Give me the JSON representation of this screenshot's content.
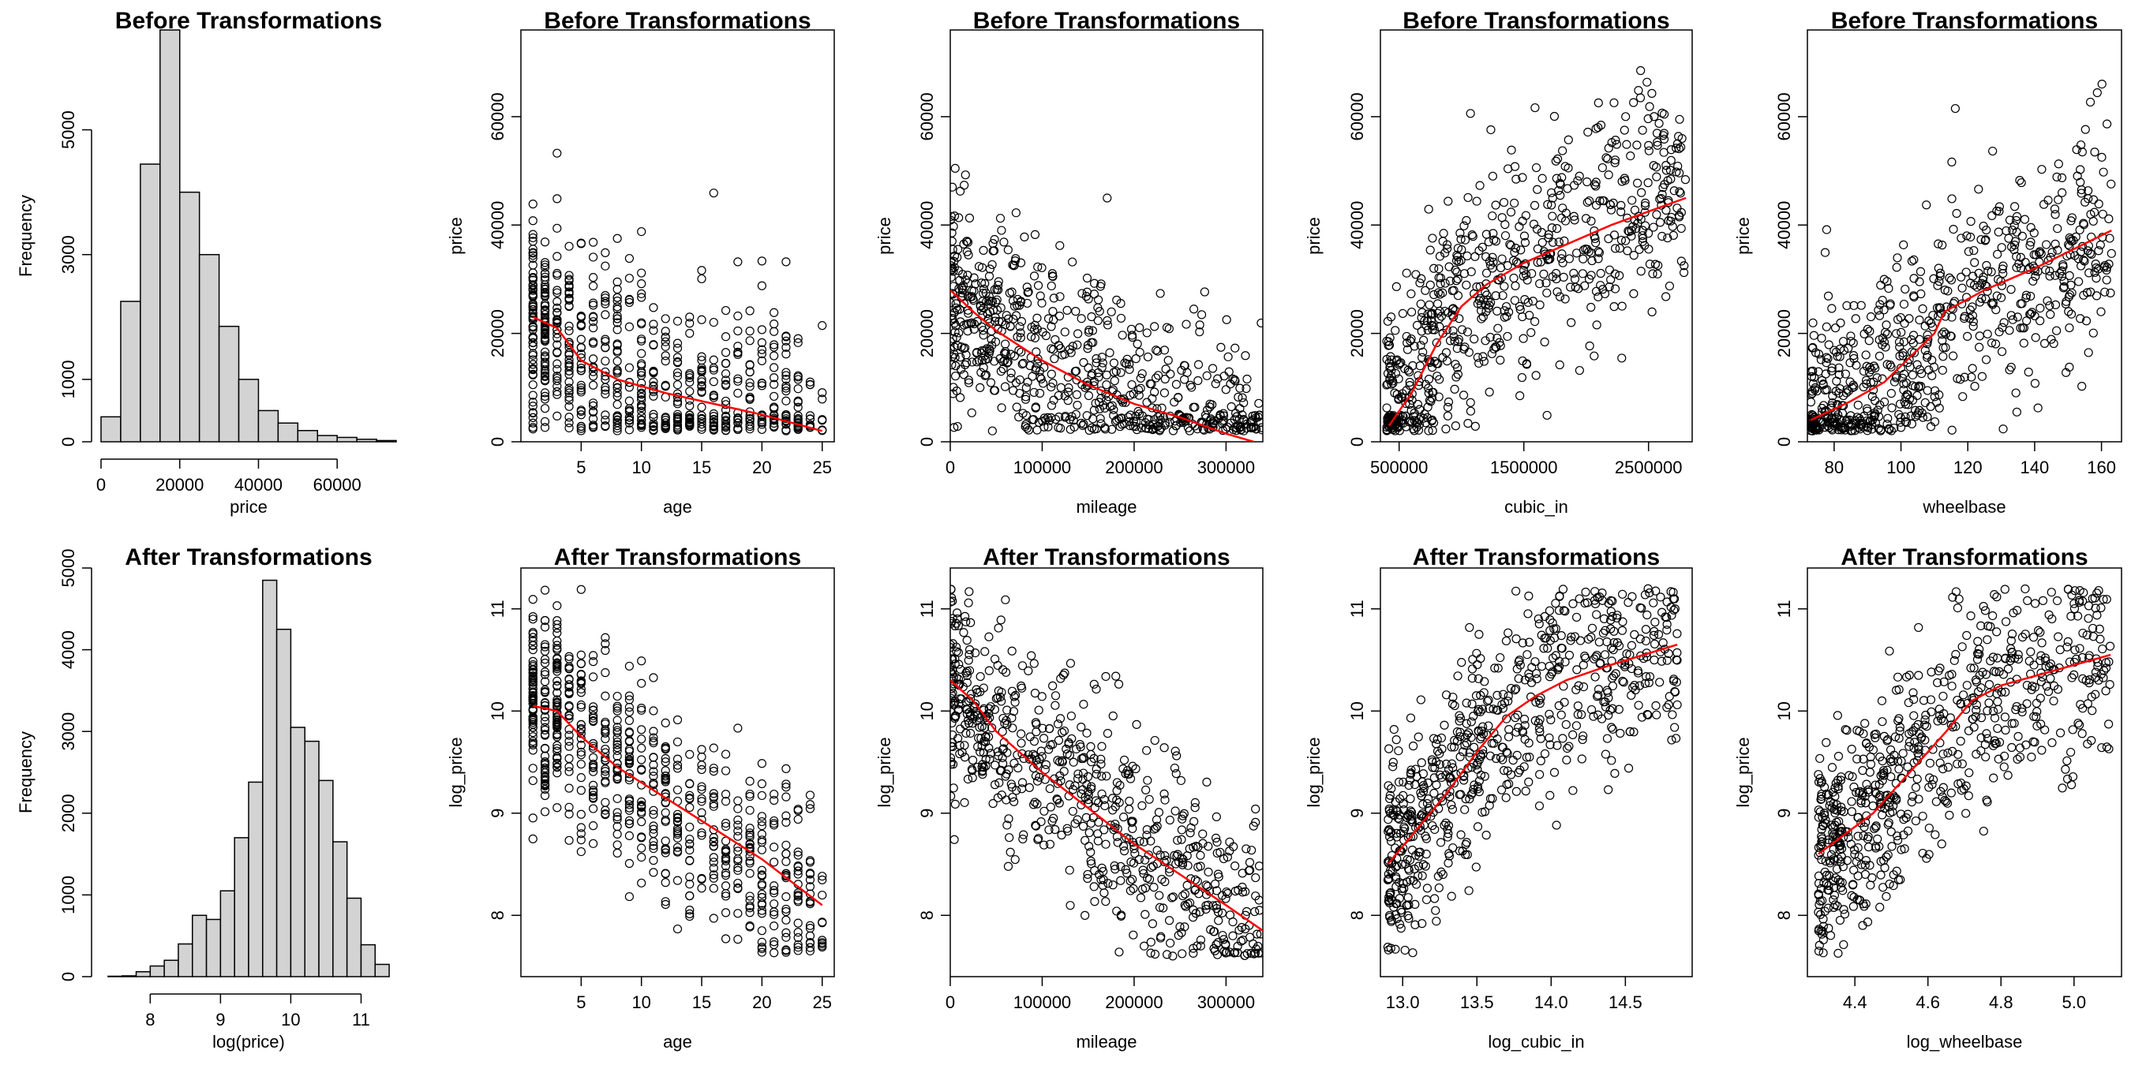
{
  "colors": {
    "background": "#ffffff",
    "bar_fill": "#d3d3d3",
    "stroke": "#000000",
    "smooth": "#ff0000"
  },
  "chart_data": [
    {
      "type": "bar",
      "title": "Before Transformations",
      "xlabel": "price",
      "ylabel": "Frequency",
      "bin_edges": [
        0,
        5000,
        10000,
        15000,
        20000,
        25000,
        30000,
        35000,
        40000,
        45000,
        50000,
        55000,
        60000,
        65000,
        70000,
        75000
      ],
      "values": [
        400,
        2250,
        4450,
        6600,
        4000,
        3000,
        1850,
        1000,
        500,
        300,
        180,
        100,
        70,
        40,
        20
      ],
      "xlim": [
        0,
        75000
      ],
      "ylim": [
        0,
        6600
      ],
      "xticks": [
        0,
        20000,
        40000,
        60000
      ],
      "xtick_labels": [
        "0",
        "20000",
        "40000",
        "60000"
      ],
      "yticks": [
        0,
        1000,
        3000,
        5000
      ],
      "ytick_labels": [
        "0",
        "1000",
        "3000",
        "5000"
      ]
    },
    {
      "type": "scatter",
      "title": "Before Transformations",
      "xlabel": "age",
      "ylabel": "price",
      "x_range": [
        1,
        25
      ],
      "y_range": [
        2000,
        75000
      ],
      "xlim": [
        0,
        26
      ],
      "ylim": [
        0,
        76000
      ],
      "xticks": [
        5,
        10,
        15,
        20,
        25
      ],
      "xtick_labels": [
        "5",
        "10",
        "15",
        "20",
        "25"
      ],
      "yticks": [
        0,
        20000,
        40000,
        60000
      ],
      "ytick_labels": [
        "0",
        "20000",
        "40000",
        "60000"
      ],
      "smooth_line": {
        "x": [
          1,
          3,
          5,
          8,
          12,
          16,
          20,
          25
        ],
        "y": [
          23000,
          21000,
          15000,
          11500,
          9000,
          7000,
          5000,
          2000
        ]
      }
    },
    {
      "type": "scatter",
      "title": "Before Transformations",
      "xlabel": "mileage",
      "ylabel": "price",
      "x_range": [
        0,
        340000
      ],
      "y_range": [
        2000,
        75000
      ],
      "xlim": [
        0,
        340000
      ],
      "ylim": [
        0,
        76000
      ],
      "xticks": [
        0,
        100000,
        200000,
        300000
      ],
      "xtick_labels": [
        "0",
        "100000",
        "200000",
        "300000"
      ],
      "yticks": [
        0,
        20000,
        40000,
        60000
      ],
      "ytick_labels": [
        "0",
        "20000",
        "40000",
        "60000"
      ],
      "smooth_line": {
        "x": [
          0,
          25000,
          50000,
          100000,
          150000,
          200000,
          250000,
          300000,
          330000
        ],
        "y": [
          28000,
          24000,
          20500,
          15000,
          10500,
          7000,
          4500,
          1500,
          0
        ]
      }
    },
    {
      "type": "scatter",
      "title": "Before Transformations",
      "xlabel": "cubic_in",
      "ylabel": "price",
      "x_range": [
        400000,
        2800000
      ],
      "y_range": [
        2000,
        75000
      ],
      "xlim": [
        350000,
        2850000
      ],
      "ylim": [
        0,
        76000
      ],
      "xticks": [
        500000,
        1500000,
        2500000
      ],
      "xtick_labels": [
        "500000",
        "1500000",
        "2500000"
      ],
      "yticks": [
        0,
        20000,
        40000,
        60000
      ],
      "ytick_labels": [
        "0",
        "20000",
        "40000",
        "60000"
      ],
      "smooth_line": {
        "x": [
          420000,
          600000,
          800000,
          1000000,
          1200000,
          1500000,
          1800000,
          2200000,
          2800000
        ],
        "y": [
          3000,
          9000,
          18000,
          25000,
          29000,
          33000,
          36000,
          40000,
          45000
        ]
      }
    },
    {
      "type": "scatter",
      "title": "Before Transformations",
      "xlabel": "wheelbase",
      "ylabel": "price",
      "x_range": [
        73,
        163
      ],
      "y_range": [
        2000,
        75000
      ],
      "xlim": [
        72,
        166
      ],
      "ylim": [
        0,
        76000
      ],
      "xticks": [
        80,
        100,
        120,
        140,
        160
      ],
      "xtick_labels": [
        "80",
        "100",
        "120",
        "140",
        "160"
      ],
      "yticks": [
        0,
        20000,
        40000,
        60000
      ],
      "ytick_labels": [
        "0",
        "20000",
        "40000",
        "60000"
      ],
      "smooth_line": {
        "x": [
          73,
          85,
          95,
          105,
          110,
          113,
          116,
          125,
          140,
          163
        ],
        "y": [
          4000,
          7500,
          11000,
          17000,
          20000,
          24000,
          25000,
          28000,
          32000,
          39000
        ]
      }
    },
    {
      "type": "bar",
      "title": "After Transformations",
      "xlabel": "log(price)",
      "ylabel": "Frequency",
      "bin_edges": [
        7.4,
        7.6,
        7.8,
        8.0,
        8.2,
        8.4,
        8.6,
        8.8,
        9.0,
        9.2,
        9.4,
        9.6,
        9.8,
        10.0,
        10.2,
        10.4,
        10.6,
        10.8,
        11.0,
        11.2,
        11.4
      ],
      "values": [
        5,
        10,
        60,
        130,
        200,
        400,
        750,
        700,
        1050,
        1700,
        2380,
        4850,
        4250,
        3050,
        2880,
        2400,
        1650,
        960,
        390,
        150
      ],
      "xlim": [
        7.3,
        11.5
      ],
      "ylim": [
        0,
        5000
      ],
      "xticks": [
        8,
        9,
        10,
        11
      ],
      "xtick_labels": [
        "8",
        "9",
        "10",
        "11"
      ],
      "yticks": [
        0,
        1000,
        2000,
        3000,
        4000,
        5000
      ],
      "ytick_labels": [
        "0",
        "1000",
        "2000",
        "3000",
        "4000",
        "5000"
      ]
    },
    {
      "type": "scatter",
      "title": "After Transformations",
      "xlabel": "age",
      "ylabel": "log_price",
      "x_range": [
        1,
        25
      ],
      "y_range": [
        7.6,
        11.2
      ],
      "xlim": [
        0,
        26
      ],
      "ylim": [
        7.4,
        11.4
      ],
      "xticks": [
        5,
        10,
        15,
        20,
        25
      ],
      "xtick_labels": [
        "5",
        "10",
        "15",
        "20",
        "25"
      ],
      "yticks": [
        8,
        9,
        10,
        11
      ],
      "ytick_labels": [
        "8",
        "9",
        "10",
        "11"
      ],
      "smooth_line": {
        "x": [
          1,
          3,
          5,
          8,
          12,
          16,
          20,
          25
        ],
        "y": [
          10.05,
          10.0,
          9.75,
          9.45,
          9.15,
          8.85,
          8.55,
          8.1
        ]
      }
    },
    {
      "type": "scatter",
      "title": "After Transformations",
      "xlabel": "mileage",
      "ylabel": "log_price",
      "x_range": [
        0,
        340000
      ],
      "y_range": [
        7.6,
        11.2
      ],
      "xlim": [
        0,
        340000
      ],
      "ylim": [
        7.4,
        11.4
      ],
      "xticks": [
        0,
        100000,
        200000,
        300000
      ],
      "xtick_labels": [
        "0",
        "100000",
        "200000",
        "300000"
      ],
      "yticks": [
        8,
        9,
        10,
        11
      ],
      "ytick_labels": [
        "8",
        "9",
        "10",
        "11"
      ],
      "smooth_line": {
        "x": [
          0,
          25000,
          50000,
          100000,
          150000,
          200000,
          250000,
          300000,
          340000
        ],
        "y": [
          10.3,
          10.1,
          9.8,
          9.4,
          9.05,
          8.7,
          8.4,
          8.1,
          7.85
        ]
      }
    },
    {
      "type": "scatter",
      "title": "After Transformations",
      "xlabel": "log_cubic_in",
      "ylabel": "log_price",
      "x_range": [
        12.9,
        14.85
      ],
      "y_range": [
        7.6,
        11.2
      ],
      "xlim": [
        12.85,
        14.95
      ],
      "ylim": [
        7.4,
        11.4
      ],
      "xticks": [
        13.0,
        13.5,
        14.0,
        14.5
      ],
      "xtick_labels": [
        "13.0",
        "13.5",
        "14.0",
        "14.5"
      ],
      "yticks": [
        8,
        9,
        10,
        11
      ],
      "ytick_labels": [
        "8",
        "9",
        "10",
        "11"
      ],
      "smooth_line": {
        "x": [
          12.9,
          13.1,
          13.3,
          13.5,
          13.7,
          13.9,
          14.1,
          14.4,
          14.85
        ],
        "y": [
          8.5,
          8.85,
          9.2,
          9.6,
          9.95,
          10.15,
          10.3,
          10.45,
          10.65
        ]
      }
    },
    {
      "type": "scatter",
      "title": "After Transformations",
      "xlabel": "log_wheelbase",
      "ylabel": "log_price",
      "x_range": [
        4.3,
        5.1
      ],
      "y_range": [
        7.6,
        11.2
      ],
      "xlim": [
        4.27,
        5.13
      ],
      "ylim": [
        7.4,
        11.4
      ],
      "xticks": [
        4.4,
        4.6,
        4.8,
        5.0
      ],
      "xtick_labels": [
        "4.4",
        "4.6",
        "4.8",
        "5.0"
      ],
      "yticks": [
        8,
        9,
        10,
        11
      ],
      "ytick_labels": [
        "8",
        "9",
        "10",
        "11"
      ],
      "smooth_line": {
        "x": [
          4.3,
          4.45,
          4.55,
          4.65,
          4.72,
          4.8,
          4.9,
          5.0,
          5.1
        ],
        "y": [
          8.6,
          9.0,
          9.4,
          9.8,
          10.1,
          10.25,
          10.35,
          10.45,
          10.55
        ]
      }
    }
  ]
}
